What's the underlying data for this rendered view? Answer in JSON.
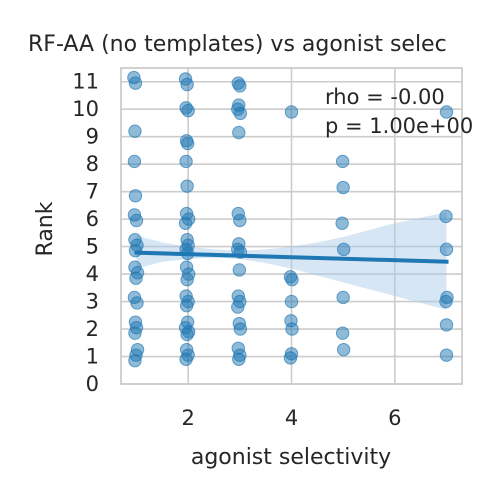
{
  "chart_data": {
    "type": "scatter",
    "title": "RF-AA (no templates) vs agonist selec",
    "xlabel": "agonist selectivity",
    "ylabel": "Rank",
    "xlim": [
      0.7,
      7.3
    ],
    "ylim": [
      0,
      11.5
    ],
    "xticks": [
      2,
      4,
      6
    ],
    "yticks": [
      0,
      1,
      2,
      3,
      4,
      5,
      6,
      7,
      8,
      9,
      10,
      11
    ],
    "grid": true,
    "colors": {
      "points": "#1f77b4",
      "line": "#1f77b4",
      "band": "#a6c8e6",
      "grid": "#cccccc",
      "spine": "#cccccc"
    },
    "points": [
      [
        0.95,
        11.15
      ],
      [
        0.98,
        10.95
      ],
      [
        0.97,
        9.2
      ],
      [
        0.96,
        8.1
      ],
      [
        0.98,
        6.85
      ],
      [
        0.96,
        6.15
      ],
      [
        1.0,
        5.95
      ],
      [
        0.97,
        5.25
      ],
      [
        1.01,
        5.05
      ],
      [
        0.98,
        4.85
      ],
      [
        0.97,
        4.25
      ],
      [
        1.02,
        4.05
      ],
      [
        0.99,
        3.85
      ],
      [
        0.96,
        3.15
      ],
      [
        1.01,
        2.95
      ],
      [
        0.98,
        2.25
      ],
      [
        1.0,
        2.05
      ],
      [
        0.97,
        1.85
      ],
      [
        1.02,
        1.25
      ],
      [
        0.99,
        1.05
      ],
      [
        0.97,
        0.85
      ],
      [
        1.95,
        11.1
      ],
      [
        1.98,
        10.9
      ],
      [
        1.96,
        10.05
      ],
      [
        2.0,
        9.95
      ],
      [
        1.97,
        8.85
      ],
      [
        1.99,
        8.75
      ],
      [
        1.96,
        8.1
      ],
      [
        1.98,
        7.2
      ],
      [
        1.97,
        6.2
      ],
      [
        2.01,
        6.0
      ],
      [
        1.95,
        5.85
      ],
      [
        1.98,
        5.25
      ],
      [
        2.0,
        5.05
      ],
      [
        1.96,
        4.9
      ],
      [
        1.99,
        4.75
      ],
      [
        1.97,
        4.25
      ],
      [
        2.01,
        4.0
      ],
      [
        1.98,
        3.8
      ],
      [
        1.96,
        3.2
      ],
      [
        2.0,
        3.0
      ],
      [
        1.97,
        2.85
      ],
      [
        1.99,
        2.25
      ],
      [
        1.95,
        2.05
      ],
      [
        2.01,
        1.9
      ],
      [
        1.98,
        1.8
      ],
      [
        1.97,
        1.25
      ],
      [
        2.0,
        1.05
      ],
      [
        1.96,
        0.9
      ],
      [
        2.97,
        10.95
      ],
      [
        3.0,
        10.85
      ],
      [
        2.98,
        10.15
      ],
      [
        2.96,
        10.0
      ],
      [
        3.01,
        9.85
      ],
      [
        2.98,
        9.15
      ],
      [
        2.97,
        6.2
      ],
      [
        3.0,
        5.95
      ],
      [
        2.98,
        5.1
      ],
      [
        2.96,
        4.9
      ],
      [
        3.01,
        4.8
      ],
      [
        2.99,
        4.15
      ],
      [
        2.97,
        3.2
      ],
      [
        3.0,
        3.0
      ],
      [
        2.96,
        2.8
      ],
      [
        2.99,
        2.2
      ],
      [
        3.01,
        2.0
      ],
      [
        2.97,
        1.3
      ],
      [
        3.0,
        1.05
      ],
      [
        2.98,
        0.9
      ],
      [
        4.0,
        9.9
      ],
      [
        3.98,
        3.9
      ],
      [
        4.01,
        3.8
      ],
      [
        4.0,
        3.0
      ],
      [
        3.99,
        2.3
      ],
      [
        4.01,
        2.0
      ],
      [
        4.0,
        1.1
      ],
      [
        3.98,
        0.95
      ],
      [
        4.99,
        8.1
      ],
      [
        5.0,
        7.15
      ],
      [
        4.98,
        5.85
      ],
      [
        5.01,
        4.9
      ],
      [
        5.0,
        3.15
      ],
      [
        4.99,
        1.85
      ],
      [
        5.01,
        1.25
      ],
      [
        7.0,
        9.9
      ],
      [
        6.99,
        6.1
      ],
      [
        7.0,
        4.9
      ],
      [
        7.01,
        3.15
      ],
      [
        6.99,
        3.0
      ],
      [
        7.0,
        2.15
      ],
      [
        7.0,
        1.05
      ]
    ],
    "regression": {
      "x": [
        1,
        7
      ],
      "y": [
        4.78,
        4.45
      ]
    },
    "confidence_band": {
      "x": [
        1,
        1.5,
        2,
        2.5,
        3,
        3.5,
        4,
        4.5,
        5,
        5.5,
        6,
        6.5,
        7
      ],
      "lower": [
        4.2,
        4.45,
        4.55,
        4.6,
        4.55,
        4.4,
        4.2,
        3.95,
        3.7,
        3.45,
        3.2,
        2.95,
        2.7
      ],
      "upper": [
        5.4,
        5.15,
        5.0,
        4.9,
        4.85,
        4.9,
        5.0,
        5.15,
        5.35,
        5.6,
        5.85,
        6.05,
        6.25
      ]
    },
    "annotations": [
      "rho = -0.00",
      "p = 1.00e+00"
    ]
  }
}
